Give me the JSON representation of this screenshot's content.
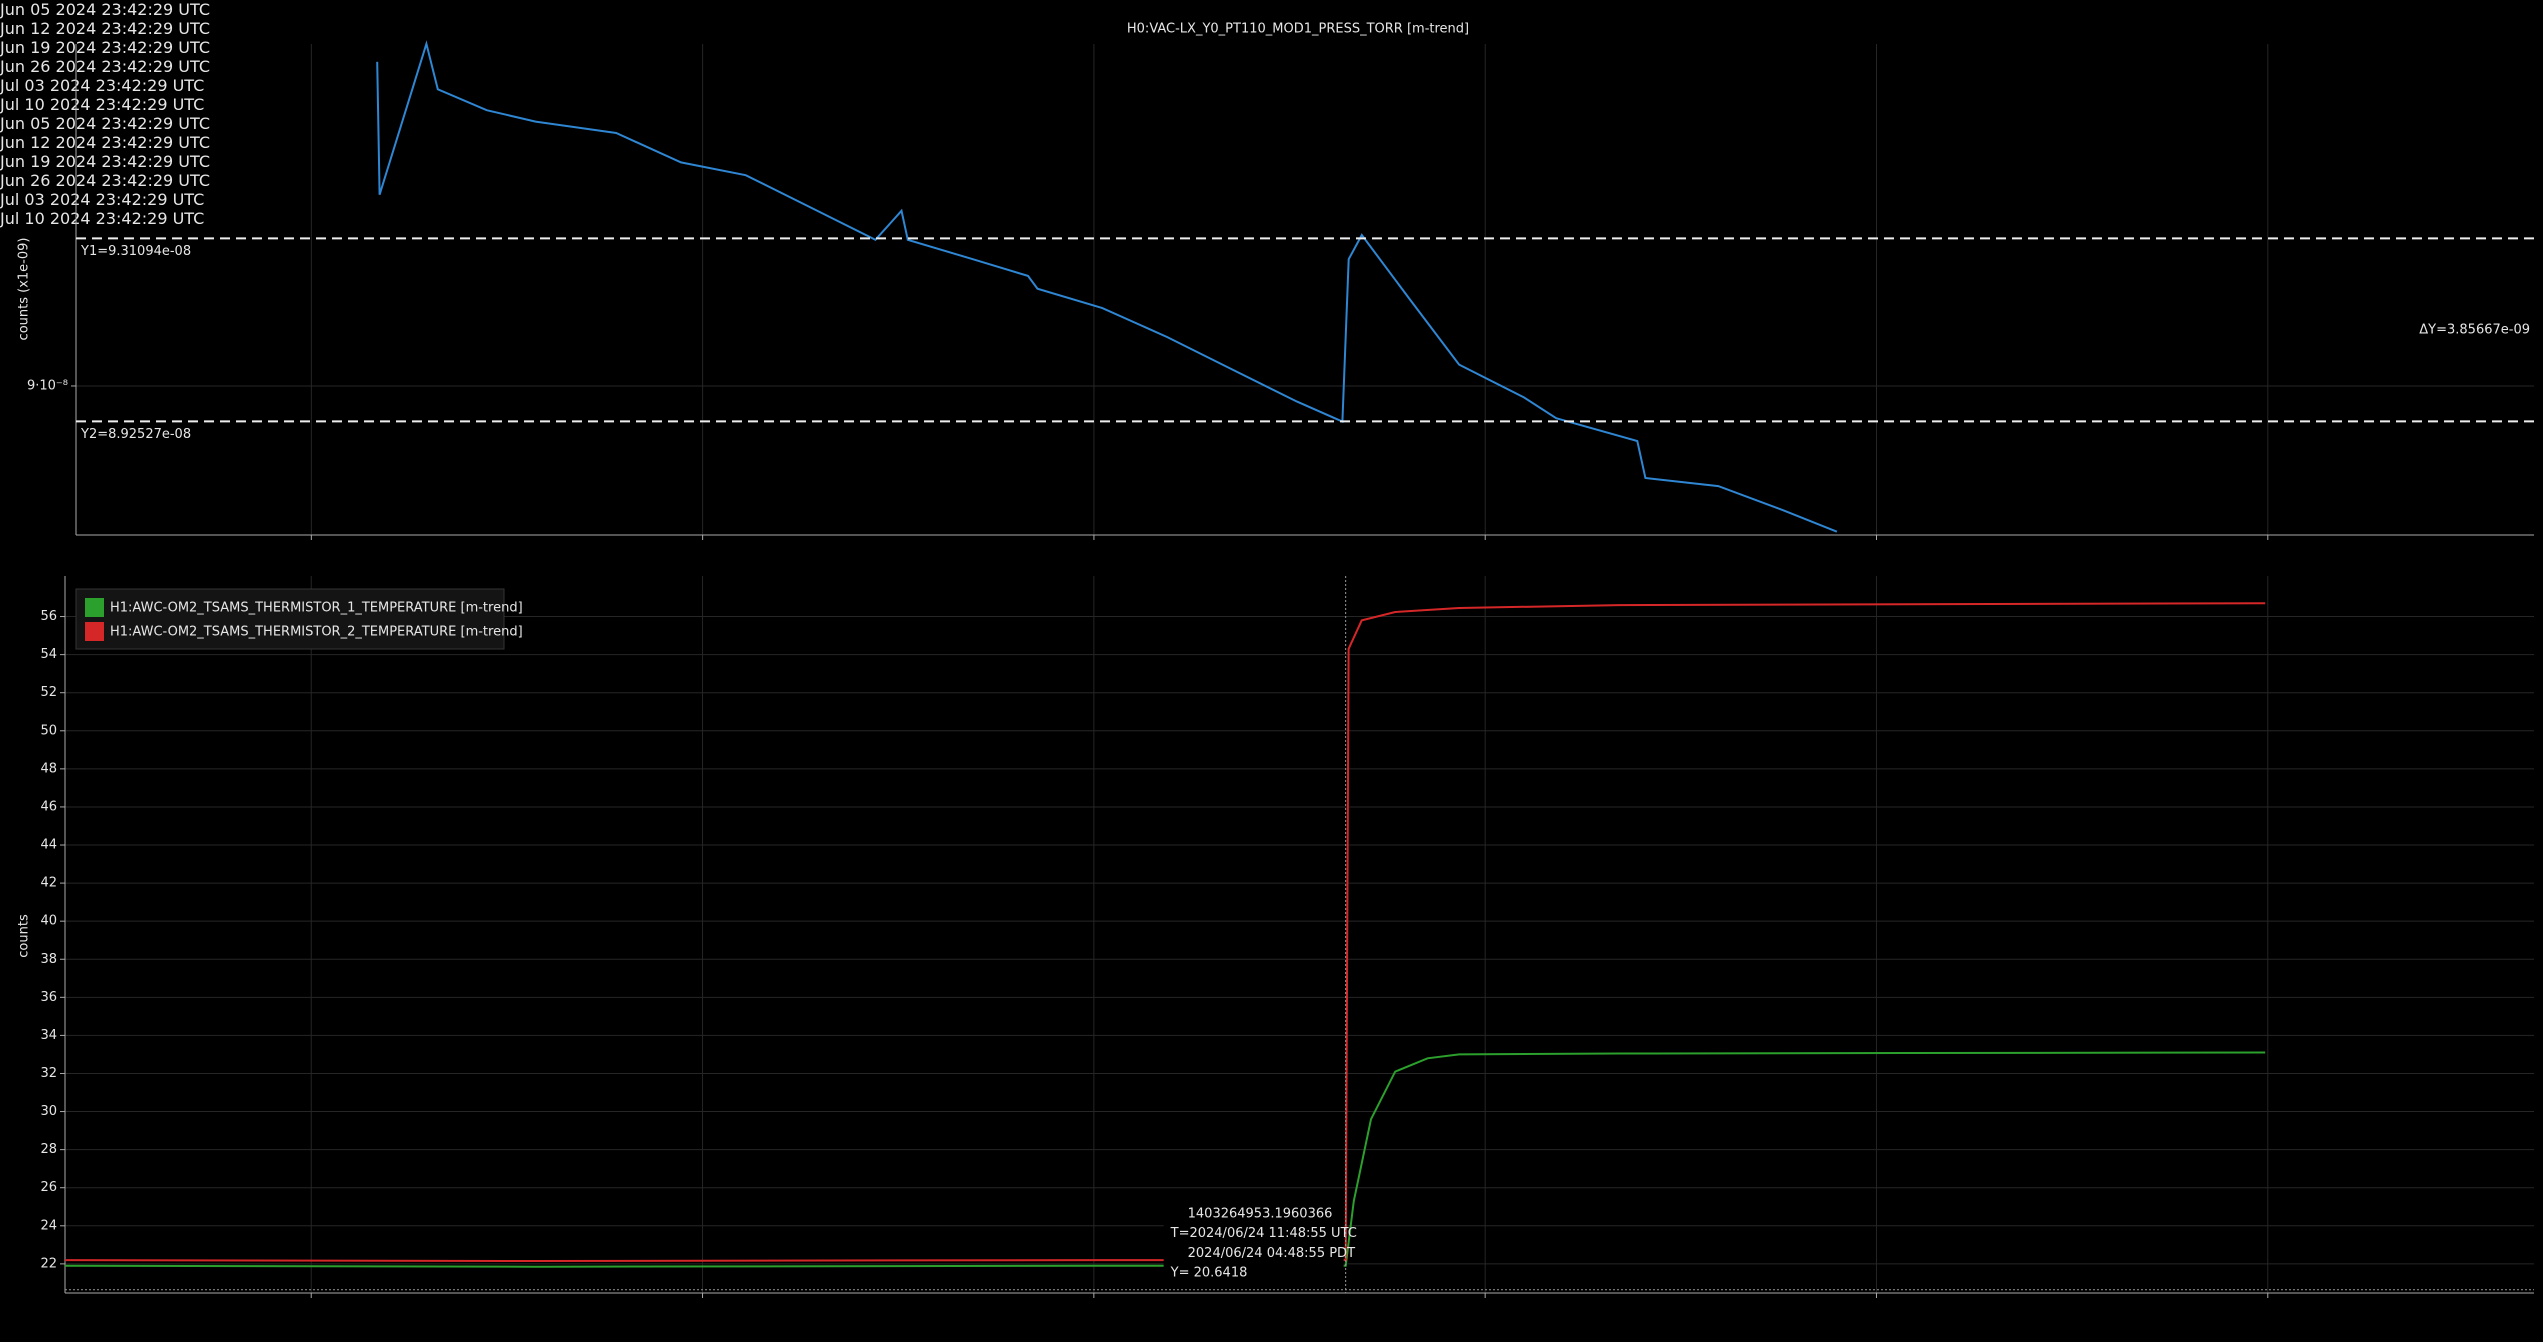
{
  "chart_data": [
    {
      "type": "line",
      "title": "H0:VAC-LX_Y0_PT110_MOD1_PRESS_TORR [m-trend]",
      "ylabel": "counts (x1e-09)",
      "color": "#2f86d2",
      "x": [
        "2024-06-07T04:00:00Z",
        "2024-06-07T05:00:00Z",
        "2024-06-08T01:06:00Z",
        "2024-06-08T06:00:00Z",
        "2024-06-09T03:00:00Z",
        "2024-06-10T00:00:00Z",
        "2024-06-11T10:36:00Z",
        "2024-06-12T14:24:00Z",
        "2024-06-13T18:12:00Z",
        "2024-06-14T22:06:00Z",
        "2024-06-16T01:54:00Z",
        "2024-06-16T13:06:00Z",
        "2024-06-16T15:48:00Z",
        "2024-06-17T19:42:00Z",
        "2024-06-18T19:24:00Z",
        "2024-06-18T23:30:00Z",
        "2024-06-20T03:18:00Z",
        "2024-06-21T07:12:00Z",
        "2024-06-22T11:00:00Z",
        "2024-06-23T14:54:00Z",
        "2024-06-24T10:24:00Z",
        "2024-06-24T13:06:00Z",
        "2024-06-24T18:42:00Z",
        "2024-06-25T15:36:00Z",
        "2024-06-26T12:30:00Z",
        "2024-06-27T16:18:00Z",
        "2024-06-28T06:12:00Z",
        "2024-06-29T17:00:00Z",
        "2024-06-29T20:30:00Z",
        "2024-07-01T03:48:00Z",
        "2024-07-02T07:42:00Z",
        "2024-07-03T06:42:00Z"
      ],
      "values": [
        9.683e-08,
        9.403e-08,
        9.721e-08,
        9.625e-08,
        9.581e-08,
        9.557e-08,
        9.533e-08,
        9.471e-08,
        9.444e-08,
        9.376e-08,
        9.308e-08,
        9.369e-08,
        9.308e-08,
        9.267e-08,
        9.232e-08,
        9.205e-08,
        9.164e-08,
        9.103e-08,
        9.035e-08,
        8.967e-08,
        8.925e-08,
        9.267e-08,
        9.318e-08,
        9.181e-08,
        9.045e-08,
        8.976e-08,
        8.932e-08,
        8.884e-08,
        8.806e-08,
        8.789e-08,
        8.738e-08,
        8.693e-08
      ],
      "xlim": [
        "2024-06-01T18:40:00Z",
        "2024-07-15T18:00:00Z"
      ],
      "xticks": [
        {
          "value": "2024-06-05T23:42:29Z",
          "label": "Jun 05 2024\n23:42:29 UTC"
        },
        {
          "value": "2024-06-12T23:42:29Z",
          "label": "Jun 12 2024\n23:42:29 UTC"
        },
        {
          "value": "2024-06-19T23:42:29Z",
          "label": "Jun 19 2024\n23:42:29 UTC"
        },
        {
          "value": "2024-06-26T23:42:29Z",
          "label": "Jun 26 2024\n23:42:29 UTC"
        },
        {
          "value": "2024-07-03T23:42:29Z",
          "label": "Jul 03 2024\n23:42:29 UTC"
        },
        {
          "value": "2024-07-10T23:42:29Z",
          "label": "Jul 10 2024\n23:42:29 UTC"
        }
      ],
      "ylim": [
        8.686e-08,
        9.7205e-08
      ],
      "yticks": [
        {
          "value": 9e-08,
          "label": "9·10⁻⁸"
        }
      ],
      "grid": true,
      "cursors": [
        {
          "label": "Y1=9.31094e-08",
          "value": 9.31094e-08
        },
        {
          "label": "Y2=8.92527e-08",
          "value": 8.92527e-08
        }
      ],
      "delta_label": "ΔY=3.85667e-09"
    },
    {
      "type": "line",
      "ylabel": "counts",
      "legend": "top-left",
      "series": [
        {
          "name": "H1:AWC-OM2_TSAMS_THERMISTOR_1_TEMPERATURE [m-trend]",
          "color": "#2ca02c",
          "x": [
            "2024-06-01T14:00:00Z",
            "2024-06-10T00:00:00Z",
            "2024-06-20T00:00:00Z",
            "2024-06-24T11:49:00Z",
            "2024-06-24T15:18:00Z",
            "2024-06-24T22:42:00Z",
            "2024-06-25T09:06:00Z",
            "2024-06-25T23:00:00Z",
            "2024-06-26T12:30:00Z",
            "2024-06-29T09:06:00Z",
            "2024-07-10T22:36:00Z"
          ],
          "values": [
            21.9,
            21.85,
            21.9,
            21.9,
            25.3,
            29.6,
            32.1,
            32.8,
            33.0,
            33.05,
            33.1
          ]
        },
        {
          "name": "H1:AWC-OM2_TSAMS_THERMISTOR_2_TEMPERATURE [m-trend]",
          "color": "#d62728",
          "x": [
            "2024-06-01T14:00:00Z",
            "2024-06-10T00:00:00Z",
            "2024-06-20T00:00:00Z",
            "2024-06-24T11:49:00Z",
            "2024-06-24T13:06:00Z",
            "2024-06-24T18:42:00Z",
            "2024-06-25T09:06:00Z",
            "2024-06-26T12:30:00Z",
            "2024-06-29T09:06:00Z",
            "2024-07-10T22:36:00Z"
          ],
          "values": [
            22.2,
            22.15,
            22.2,
            22.2,
            54.3,
            55.8,
            56.24,
            56.45,
            56.6,
            56.7
          ]
        }
      ],
      "xlim": [
        "2024-06-01T14:00:00Z",
        "2024-07-15T18:00:00Z"
      ],
      "xticks": [
        {
          "value": "2024-06-05T23:42:29Z",
          "label": "Jun 05 2024\n23:42:29 UTC"
        },
        {
          "value": "2024-06-12T23:42:29Z",
          "label": "Jun 12 2024\n23:42:29 UTC"
        },
        {
          "value": "2024-06-19T23:42:29Z",
          "label": "Jun 19 2024\n23:42:29 UTC"
        },
        {
          "value": "2024-06-26T23:42:29Z",
          "label": "Jun 26 2024\n23:42:29 UTC"
        },
        {
          "value": "2024-07-03T23:42:29Z",
          "label": "Jul 03 2024\n23:42:29 UTC"
        },
        {
          "value": "2024-07-10T23:42:29Z",
          "label": "Jul 10 2024\n23:42:29 UTC"
        }
      ],
      "ylim": [
        20.47,
        58.13
      ],
      "yticks": [
        22,
        24,
        26,
        28,
        30,
        32,
        34,
        36,
        38,
        40,
        42,
        44,
        46,
        48,
        50,
        52,
        54,
        56
      ],
      "grid": true,
      "cursor": {
        "x": "2024-06-24T11:48:55Z",
        "y": 20.6418,
        "labels": [
          "1403264953.1960366",
          "T=2024/06/24 11:48:55 UTC",
          "2024/06/24 04:48:55 PDT",
          "Y= 20.6418"
        ]
      }
    }
  ]
}
